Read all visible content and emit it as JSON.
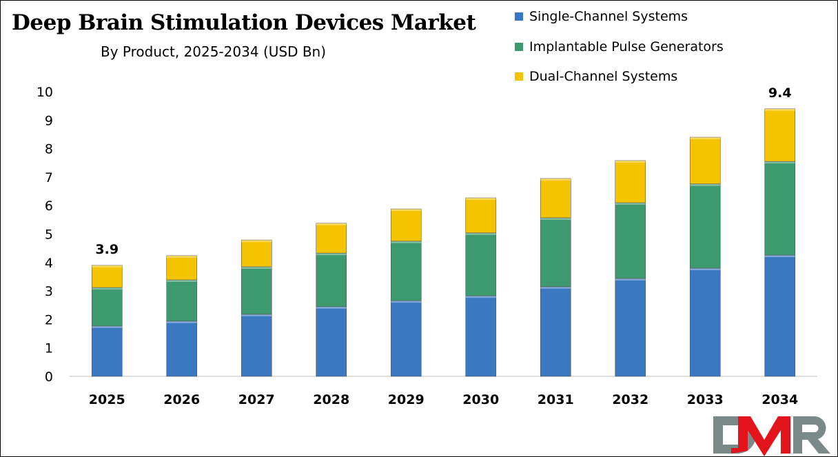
{
  "chart_data": {
    "type": "bar",
    "stacked": true,
    "title": "Deep Brain Stimulation Devices Market",
    "subtitle": "By Product, 2025-2034 (USD Bn)",
    "xlabel": "",
    "ylabel": "",
    "ylim": [
      0,
      10
    ],
    "yticks": [
      "0",
      "1",
      "2",
      "3",
      "4",
      "5",
      "6",
      "7",
      "8",
      "9",
      "10"
    ],
    "grid": false,
    "legend_position": "top-right",
    "categories": [
      "2025",
      "2026",
      "2027",
      "2028",
      "2029",
      "2030",
      "2031",
      "2032",
      "2033",
      "2034"
    ],
    "series": [
      {
        "name": "Single-Channel Systems",
        "color": "#3a78c2",
        "values": [
          1.77,
          1.94,
          2.18,
          2.45,
          2.66,
          2.83,
          3.15,
          3.44,
          3.8,
          4.26
        ]
      },
      {
        "name": "Implantable Pulse Generators",
        "color": "#3d9a6e",
        "values": [
          1.35,
          1.45,
          1.67,
          1.88,
          2.09,
          2.21,
          2.42,
          2.66,
          2.96,
          3.29
        ]
      },
      {
        "name": "Dual-Channel Systems",
        "color": "#f5c400",
        "values": [
          0.78,
          0.85,
          0.94,
          1.05,
          1.13,
          1.23,
          1.38,
          1.48,
          1.64,
          1.85
        ]
      }
    ],
    "data_labels": [
      {
        "category": "2025",
        "text": "3.9"
      },
      {
        "category": "2034",
        "text": "9.4"
      }
    ]
  },
  "logo": {
    "text": "DMR"
  }
}
